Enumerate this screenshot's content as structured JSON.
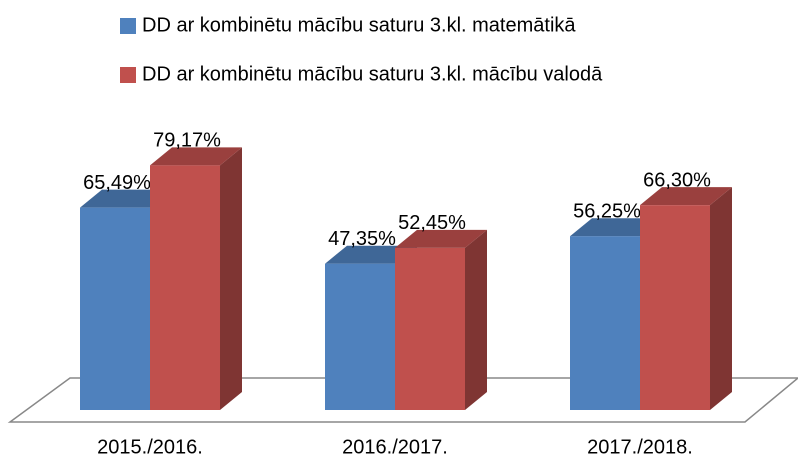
{
  "chart_data": {
    "type": "bar3d",
    "categories": [
      "2015./2016.",
      "2016./2017.",
      "2017./2018."
    ],
    "series": [
      {
        "name": "DD ar kombinētu mācību saturu 3.kl. matemātikā",
        "color": "#4f81bd",
        "values": [
          65.49,
          47.35,
          56.25
        ],
        "value_labels": [
          "65,49%",
          "47,35%",
          "56,25%"
        ]
      },
      {
        "name": "DD ar kombinētu mācību saturu 3.kl. mācību valodā",
        "color": "#c0504d",
        "values": [
          79.17,
          52.45,
          66.3
        ],
        "value_labels": [
          "79,17%",
          "52,45%",
          "66,30%"
        ]
      }
    ]
  }
}
